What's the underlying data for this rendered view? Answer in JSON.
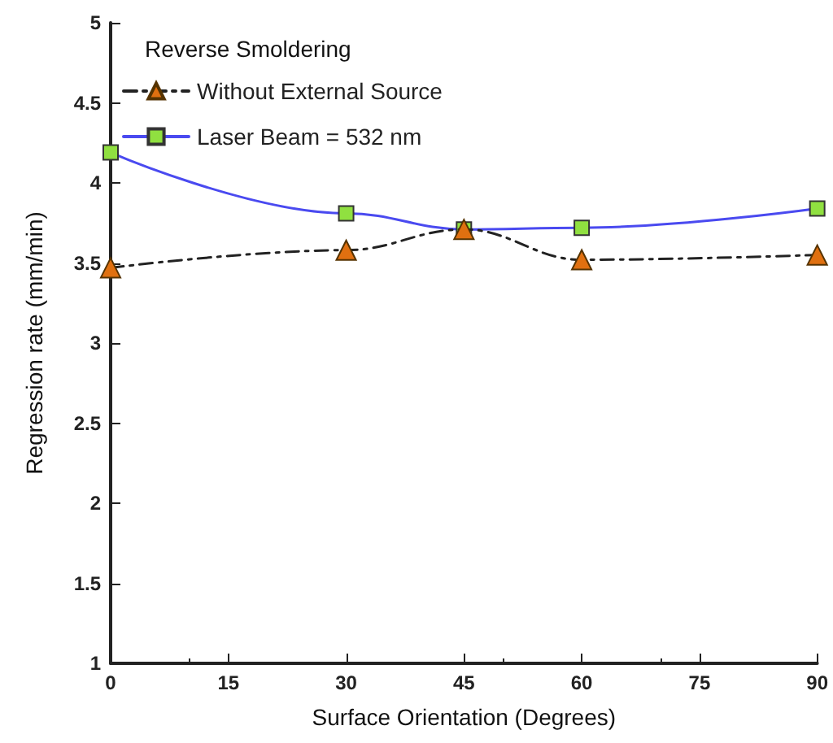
{
  "chart_data": {
    "type": "line",
    "title": "Reverse Smoldering",
    "xlabel": "Surface Orientation (Degrees)",
    "ylabel": "Regression rate (mm/min)",
    "x": [
      0,
      30,
      45,
      60,
      90
    ],
    "series": [
      {
        "name": "Without External Source",
        "color": "#e07010",
        "values": [
          3.47,
          3.58,
          3.71,
          3.52,
          3.55
        ],
        "marker": "triangle",
        "line_style": "dashed"
      },
      {
        "name": "Laser Beam = 532 nm",
        "color": "#4a4af0",
        "values": [
          4.19,
          3.81,
          3.71,
          3.72,
          3.84
        ],
        "marker": "square",
        "line_style": "solid"
      }
    ],
    "xlim": [
      0,
      90
    ],
    "xticks": [
      0,
      15,
      30,
      45,
      60,
      75,
      90
    ],
    "ylim": [
      1,
      5
    ],
    "yticks": [
      1,
      1.5,
      2,
      2.5,
      3,
      3.5,
      4,
      4.5,
      5
    ],
    "grid": false,
    "legend": "top left"
  }
}
